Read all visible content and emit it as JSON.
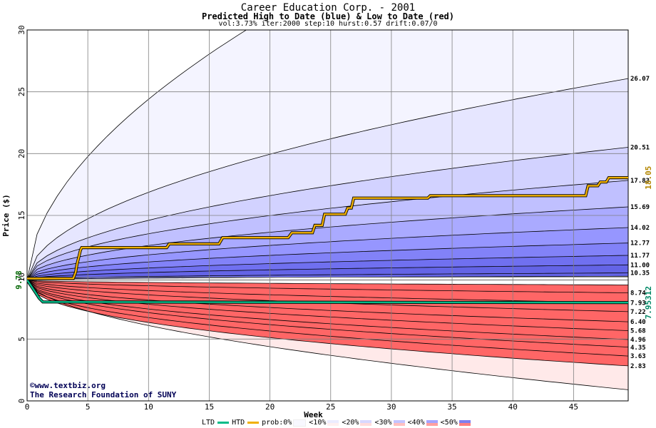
{
  "title": "Career Education Corp. - 2001",
  "subtitle": "Predicted High to Date (blue) &  Low to Date (red)",
  "params": "vol:3.73% iter:2000 step:10 hurst:0.57 drift:0.07/0",
  "credit_line1": "www.textbiz.org",
  "credit_line2": "The Research Foundation of SUNY",
  "chart_data": {
    "type": "area",
    "xlabel": "Week",
    "ylabel": "Price ($)",
    "xlim": [
      0,
      49.5
    ],
    "ylim": [
      0,
      30
    ],
    "x_ticks": [
      0,
      5,
      10,
      15,
      20,
      25,
      30,
      35,
      40,
      45
    ],
    "y_ticks": [
      0,
      5,
      10,
      15,
      20,
      25,
      30
    ],
    "grid": true,
    "start_price": 9.78,
    "start_label": "9.78",
    "high_bands": [
      {
        "end": 26.07,
        "label": "26.07"
      },
      {
        "end": 20.51,
        "label": "20.51"
      },
      {
        "end": 17.83,
        "label": "17.83"
      },
      {
        "end": 15.69,
        "label": "15.69"
      },
      {
        "end": 14.02,
        "label": "14.02"
      },
      {
        "end": 12.77,
        "label": "12.77"
      },
      {
        "end": 11.77,
        "label": "11.77"
      },
      {
        "end": 11.0,
        "label": "11.00"
      },
      {
        "end": 10.35,
        "label": "10.35"
      }
    ],
    "low_bands": [
      {
        "end": 8.74,
        "label": "8.74"
      },
      {
        "end": 7.93,
        "label": "7.93"
      },
      {
        "end": 7.22,
        "label": "7.22"
      },
      {
        "end": 6.4,
        "label": "6.40"
      },
      {
        "end": 5.68,
        "label": "5.68"
      },
      {
        "end": 4.96,
        "label": "4.96"
      },
      {
        "end": 4.35,
        "label": "4.35"
      },
      {
        "end": 3.63,
        "label": "3.63"
      },
      {
        "end": 2.83,
        "label": "2.83"
      }
    ],
    "htd_final_label": "18.05",
    "ltd_final_label": "7.95312",
    "htd_series": {
      "name": "HTD",
      "x": [
        0,
        3.8,
        4.0,
        4.1,
        4.3,
        4.4,
        4.5,
        11.5,
        11.7,
        15.8,
        16.1,
        21.5,
        21.8,
        23.5,
        23.7,
        24.3,
        24.5,
        26.2,
        26.4,
        26.7,
        26.9,
        33.0,
        33.2,
        46.0,
        46.2,
        47.0,
        47.2,
        47.7,
        47.9,
        49.5
      ],
      "y": [
        9.9,
        9.9,
        10.4,
        11.0,
        11.8,
        12.2,
        12.4,
        12.4,
        12.7,
        12.7,
        13.2,
        13.2,
        13.6,
        13.6,
        14.2,
        14.2,
        15.1,
        15.1,
        15.6,
        15.6,
        16.4,
        16.4,
        16.6,
        16.6,
        17.4,
        17.4,
        17.7,
        17.7,
        18.05,
        18.05
      ]
    },
    "ltd_series": {
      "name": "LTD",
      "x": [
        0,
        0.6,
        1.0,
        1.3,
        49.5
      ],
      "y": [
        9.78,
        8.9,
        8.3,
        8.0,
        7.95
      ]
    },
    "legend": {
      "ltd": "LTD",
      "htd": "HTD",
      "prob_prefix": "prob:0%",
      "items": [
        "<10%",
        "<20%",
        "<30%",
        "<40%",
        "<50%"
      ]
    },
    "colors": {
      "htd": "#f0b000",
      "ltd": "#00bb88",
      "blue_bands": [
        "#f4f4ff",
        "#e6e6ff",
        "#d2d2ff",
        "#c0c0ff",
        "#aaaaff",
        "#9696ff",
        "#8282f8",
        "#7070f0",
        "#6464e6"
      ],
      "red_bands": [
        "#ffe9e9",
        "#ffdcdc",
        "#ffcbcb",
        "#ffb9b9",
        "#ffa6a6",
        "#ff9696",
        "#ff8484",
        "#ff7474",
        "#ff6666"
      ]
    }
  }
}
